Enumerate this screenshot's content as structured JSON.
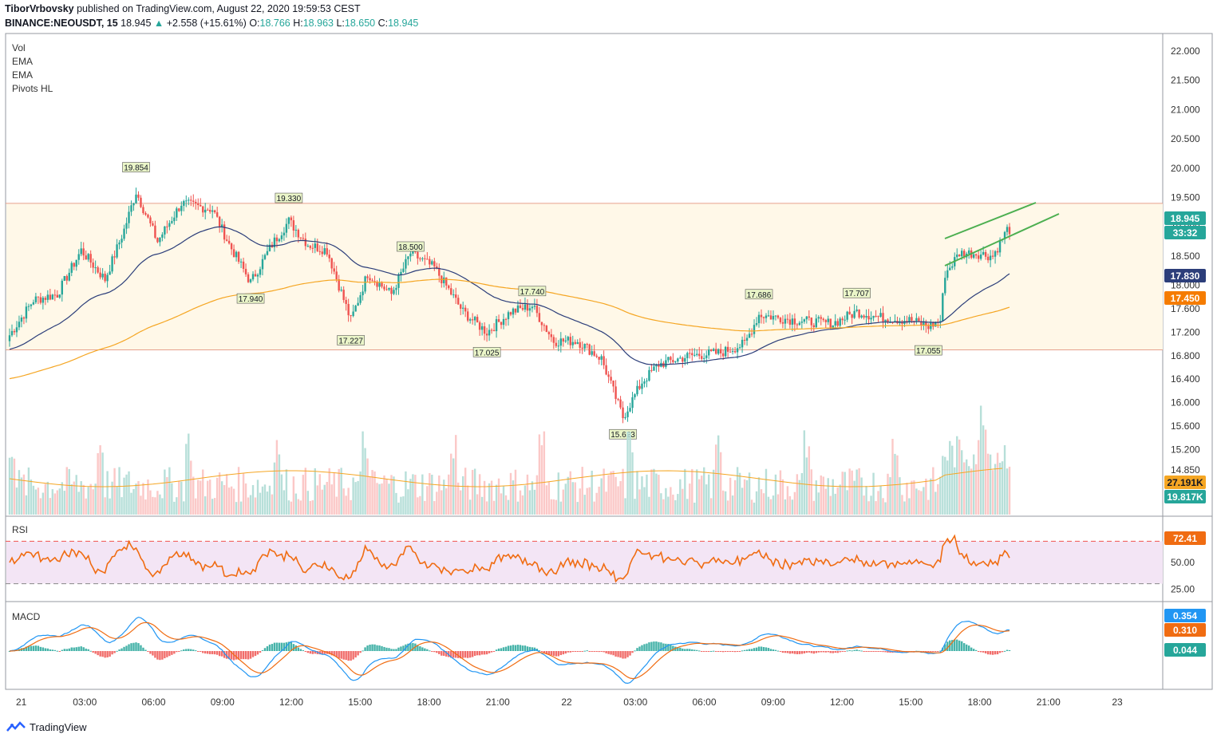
{
  "header": {
    "author": "TiborVrbovsky",
    "published_text": "published on TradingView.com, August 22, 2020 19:59:53 CEST",
    "symbol": "BINANCE:NEOUSDT, 15",
    "last": "18.945",
    "change": "+2.558 (+15.61%)",
    "o_label": "O:",
    "o": "18.766",
    "h_label": "H:",
    "h": "18.963",
    "l_label": "L:",
    "l": "18.650",
    "c_label": "C:",
    "c": "18.945"
  },
  "legend": [
    "Vol",
    "EMA",
    "EMA",
    "Pivots HL"
  ],
  "panes": {
    "rsi": "RSI",
    "macd": "MACD"
  },
  "footer": {
    "brand": "TradingView"
  },
  "colors": {
    "up": "#26a69a",
    "down": "#ef5350",
    "ema_short": "#2c3e7a",
    "ema_long": "#f5a623",
    "rsi": "#f06c12",
    "macd": "#2196f3",
    "signal": "#f06c12",
    "channel": "#4caf50",
    "zone": "#fff8e8",
    "zone_line": "#e6a08c"
  },
  "chart_data": {
    "type": "candlestick",
    "x_ticks": [
      "21",
      "03:00",
      "06:00",
      "09:00",
      "12:00",
      "15:00",
      "18:00",
      "21:00",
      "22",
      "03:00",
      "06:00",
      "09:00",
      "12:00",
      "15:00",
      "18:00",
      "21:00",
      "23"
    ],
    "y_ticks": [
      "22.000",
      "21.500",
      "21.000",
      "20.500",
      "20.000",
      "19.500",
      "19.000",
      "18.500",
      "18.000",
      "17.600",
      "17.200",
      "16.800",
      "16.400",
      "16.000",
      "15.600",
      "15.200",
      "14.850"
    ],
    "price_range": [
      14.85,
      22.0
    ],
    "resistance_level": 19.4,
    "support_level": 16.9,
    "pivots": [
      {
        "label": "19.854",
        "t": 53,
        "price": 19.854,
        "type": "high"
      },
      {
        "label": "19.330",
        "t": 117,
        "price": 19.33,
        "type": "high"
      },
      {
        "label": "17.940",
        "t": 101,
        "price": 17.94,
        "type": "low"
      },
      {
        "label": "17.227",
        "t": 143,
        "price": 17.227,
        "type": "low"
      },
      {
        "label": "18.500",
        "t": 168,
        "price": 18.5,
        "type": "high"
      },
      {
        "label": "17.025",
        "t": 200,
        "price": 17.025,
        "type": "low"
      },
      {
        "label": "17.740",
        "t": 219,
        "price": 17.74,
        "type": "high"
      },
      {
        "label": "15.623",
        "t": 257,
        "price": 15.623,
        "type": "low"
      },
      {
        "label": "17.686",
        "t": 314,
        "price": 17.686,
        "type": "high"
      },
      {
        "label": "17.707",
        "t": 355,
        "price": 17.707,
        "type": "high"
      },
      {
        "label": "17.055",
        "t": 385,
        "price": 17.055,
        "type": "low"
      }
    ],
    "price_labels": {
      "last": "18.945",
      "countdown": "33:32",
      "ema_short": "17.830",
      "ema_long": "17.450",
      "vol_ma": "27.191K",
      "vol": "19.817K",
      "rsi": "72.41",
      "macd": "0.354",
      "signal": "0.310",
      "hist": "0.044"
    },
    "rsi_ticks": [
      "50.00",
      "25.00"
    ],
    "rsi_bands": [
      70,
      30
    ],
    "close_anchors": [
      [
        0,
        17.15
      ],
      [
        10,
        17.75
      ],
      [
        20,
        17.85
      ],
      [
        30,
        18.6
      ],
      [
        40,
        18.1
      ],
      [
        48,
        18.95
      ],
      [
        53,
        19.6
      ],
      [
        62,
        18.75
      ],
      [
        72,
        19.4
      ],
      [
        85,
        19.3
      ],
      [
        92,
        18.7
      ],
      [
        101,
        18.05
      ],
      [
        110,
        18.7
      ],
      [
        117,
        19.1
      ],
      [
        125,
        18.7
      ],
      [
        133,
        18.6
      ],
      [
        143,
        17.4
      ],
      [
        150,
        18.2
      ],
      [
        160,
        17.85
      ],
      [
        168,
        18.55
      ],
      [
        178,
        18.3
      ],
      [
        190,
        17.55
      ],
      [
        200,
        17.2
      ],
      [
        210,
        17.55
      ],
      [
        219,
        17.65
      ],
      [
        228,
        17.05
      ],
      [
        238,
        17.05
      ],
      [
        248,
        16.75
      ],
      [
        257,
        15.75
      ],
      [
        265,
        16.35
      ],
      [
        272,
        16.65
      ],
      [
        285,
        16.8
      ],
      [
        298,
        16.85
      ],
      [
        308,
        17.0
      ],
      [
        314,
        17.5
      ],
      [
        330,
        17.4
      ],
      [
        345,
        17.35
      ],
      [
        355,
        17.55
      ],
      [
        365,
        17.45
      ],
      [
        378,
        17.4
      ],
      [
        385,
        17.3
      ],
      [
        390,
        17.4
      ],
      [
        392,
        18.2
      ],
      [
        398,
        18.55
      ],
      [
        405,
        18.55
      ],
      [
        412,
        18.5
      ],
      [
        418,
        18.95
      ]
    ]
  }
}
